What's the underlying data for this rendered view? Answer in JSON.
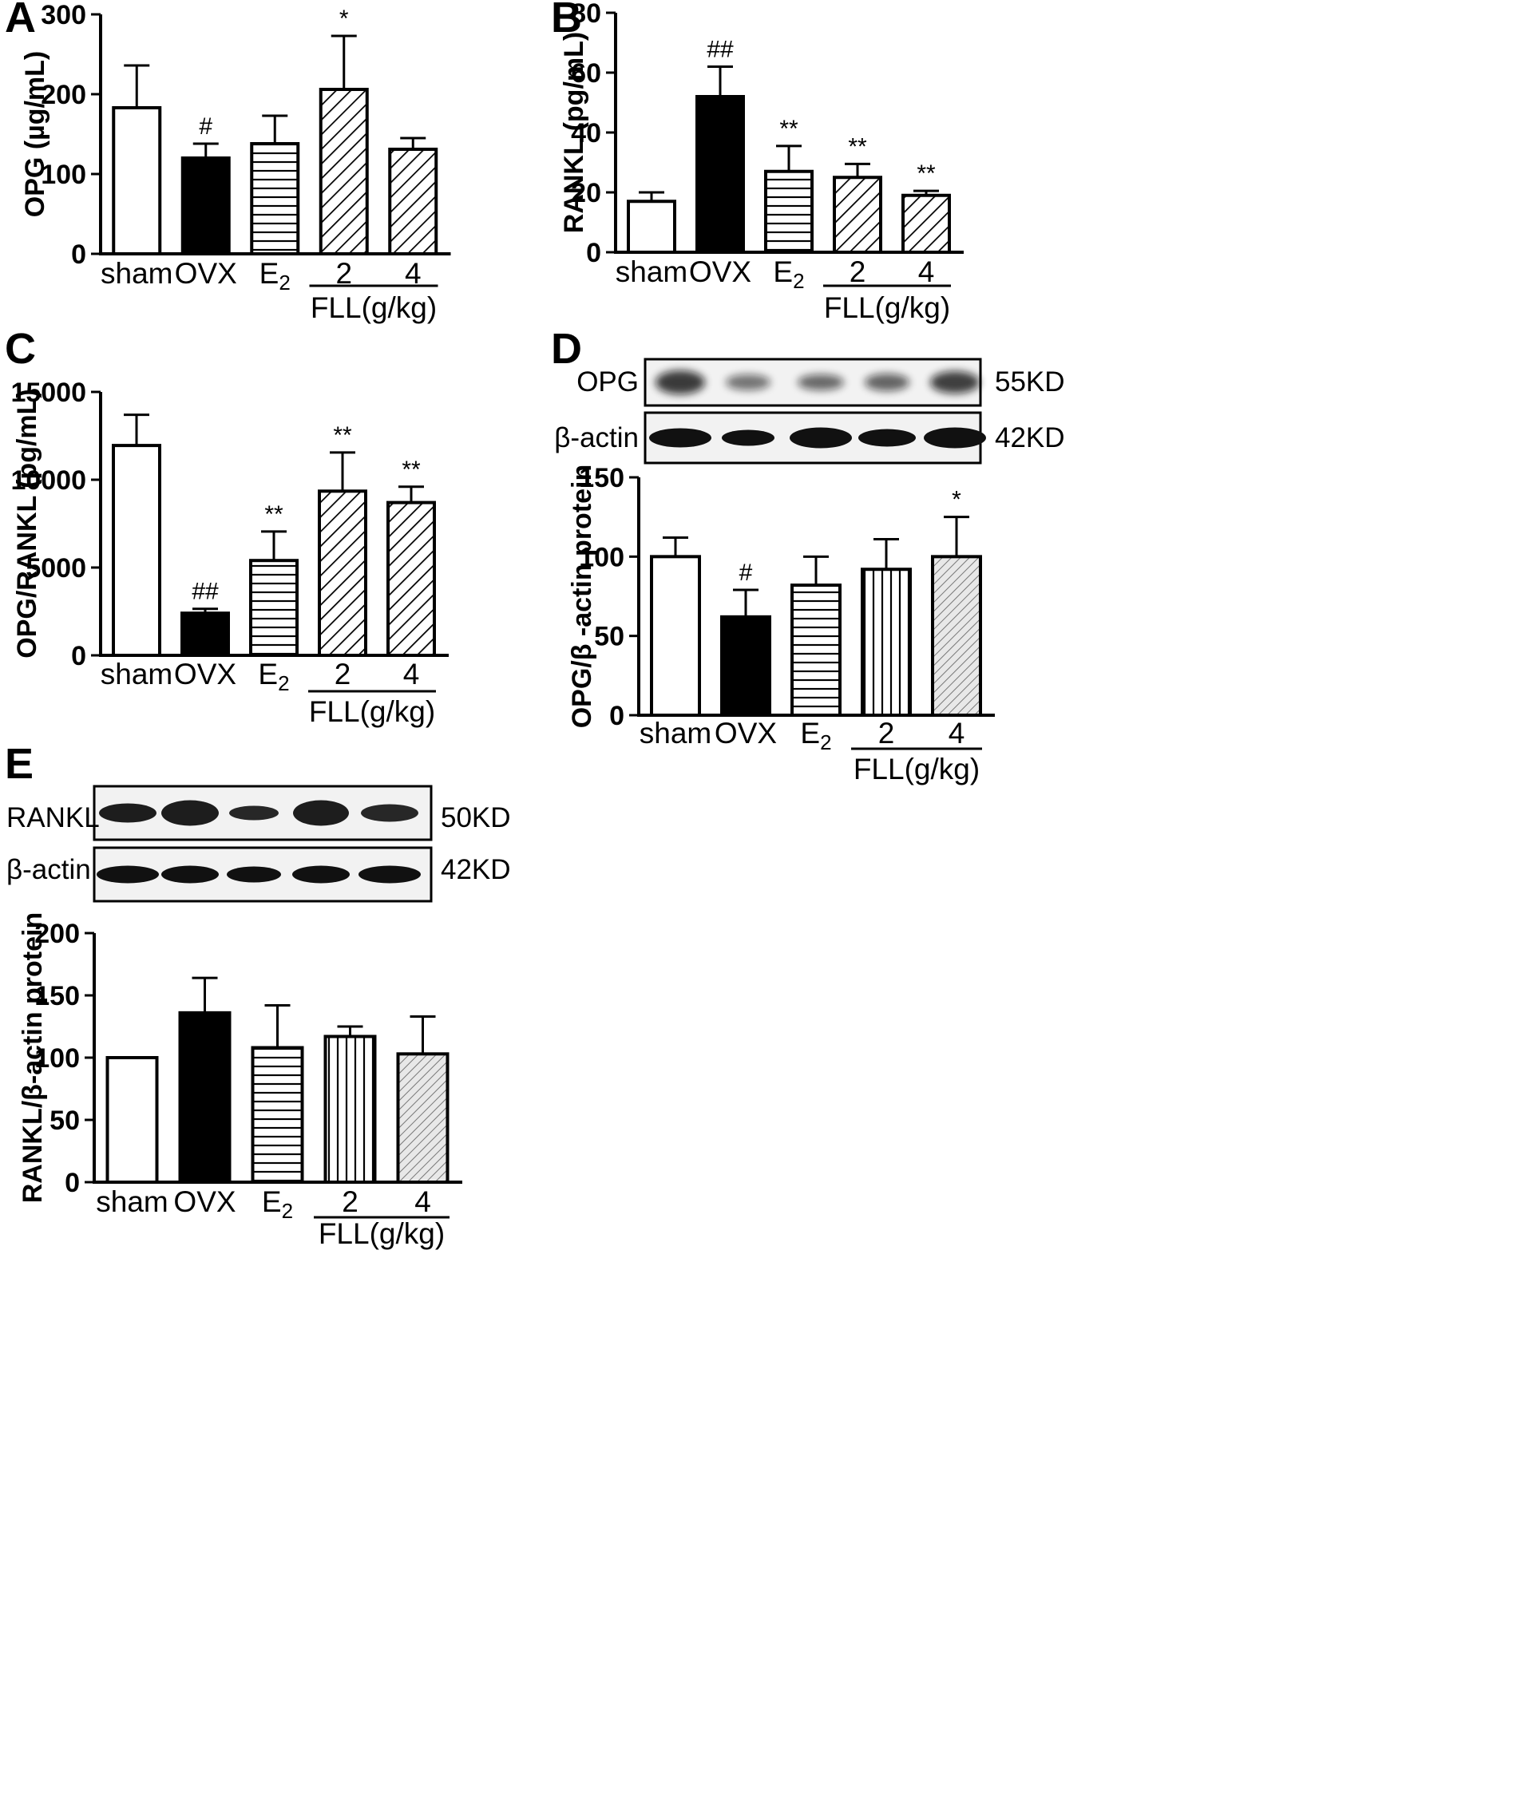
{
  "figure": {
    "categories": [
      "sham",
      "OVX",
      "E2",
      "2",
      "4"
    ],
    "group_label": "FLL(g/kg)",
    "panels": [
      "A",
      "B",
      "C",
      "D",
      "E"
    ]
  },
  "chart_data": [
    {
      "panel": "A",
      "type": "bar",
      "categories": [
        "sham",
        "OVX",
        "E2",
        "2",
        "4"
      ],
      "values": [
        183,
        120,
        138,
        206,
        131
      ],
      "errors": [
        53,
        18,
        35,
        67,
        14
      ],
      "significance": [
        "",
        "#",
        "",
        "*",
        ""
      ],
      "patterns": [
        "white",
        "black",
        "horizontal",
        "diagonal",
        "diagonal"
      ],
      "ylabel": "OPG (µg/mL)",
      "ylim": [
        0,
        300
      ],
      "yticks": [
        0,
        100,
        200,
        300
      ],
      "group_label": "FLL(g/kg)"
    },
    {
      "panel": "B",
      "type": "bar",
      "categories": [
        "sham",
        "OVX",
        "E2",
        "2",
        "4"
      ],
      "values": [
        17,
        52,
        27,
        25,
        19
      ],
      "errors": [
        3,
        10,
        8.5,
        4.5,
        1.5
      ],
      "significance": [
        "",
        "##",
        "**",
        "**",
        "**"
      ],
      "patterns": [
        "white",
        "black",
        "horizontal",
        "diagonal",
        "diagonal"
      ],
      "ylabel": "RANKL (pg/mL)",
      "ylim": [
        0,
        80
      ],
      "yticks": [
        0,
        20,
        40,
        60,
        80
      ],
      "group_label": "FLL(g/kg)"
    },
    {
      "panel": "C",
      "type": "bar",
      "categories": [
        "sham",
        "OVX",
        "E2",
        "2",
        "4"
      ],
      "values": [
        11950,
        2400,
        5400,
        9350,
        8700
      ],
      "errors": [
        1750,
        250,
        1650,
        2200,
        900
      ],
      "significance": [
        "",
        "##",
        "**",
        "**",
        "**"
      ],
      "patterns": [
        "white",
        "black",
        "horizontal",
        "diagonal",
        "diagonal"
      ],
      "ylabel": "OPG/RANKL (pg/mL)",
      "ylim": [
        0,
        15000
      ],
      "yticks": [
        0,
        5000,
        10000,
        15000
      ],
      "group_label": "FLL(g/kg)"
    },
    {
      "panel": "D",
      "type": "bar",
      "categories": [
        "sham",
        "OVX",
        "E2",
        "2",
        "4"
      ],
      "values": [
        100,
        62,
        82,
        92,
        100
      ],
      "errors": [
        12,
        17,
        18,
        19,
        25
      ],
      "significance": [
        "",
        "#",
        "",
        "",
        "*"
      ],
      "patterns": [
        "white",
        "black",
        "horizontal",
        "vertical",
        "dotted"
      ],
      "ylabel": "OPG/β -actin protein",
      "ylim": [
        0,
        150
      ],
      "yticks": [
        0,
        50,
        100,
        150
      ],
      "group_label": "FLL(g/kg)",
      "blots": [
        {
          "name": "OPG",
          "size": "55KD"
        },
        {
          "name": "β-actin",
          "size": "42KD"
        }
      ]
    },
    {
      "panel": "E",
      "type": "bar",
      "categories": [
        "sham",
        "OVX",
        "E2",
        "2",
        "4"
      ],
      "values": [
        100,
        136,
        108,
        117,
        103
      ],
      "errors": [
        0,
        28,
        34,
        8,
        30
      ],
      "significance": [
        "",
        "",
        "",
        "",
        ""
      ],
      "patterns": [
        "white",
        "black",
        "horizontal",
        "vertical",
        "dotted"
      ],
      "ylabel": "RANKL/β-actin protein",
      "ylim": [
        0,
        200
      ],
      "yticks": [
        0,
        50,
        100,
        150,
        200
      ],
      "group_label": "FLL(g/kg)",
      "blots": [
        {
          "name": "RANKL",
          "size": "50KD"
        },
        {
          "name": "β-actin",
          "size": "42KD"
        }
      ]
    }
  ]
}
